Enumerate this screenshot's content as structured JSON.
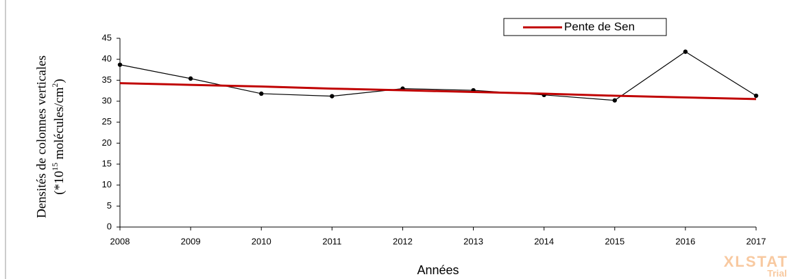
{
  "chart_data": {
    "type": "line",
    "x_label": "Années",
    "y_label_line1": "Densités de colonnes verticales",
    "y_label_line2_parts": [
      "(*10",
      "15",
      " molécules/cm",
      "2",
      ")"
    ],
    "categories": [
      "2008",
      "2009",
      "2010",
      "2011",
      "2012",
      "2013",
      "2014",
      "2015",
      "2016",
      "2017"
    ],
    "series": [
      {
        "color": "#000000",
        "values": [
          38.7,
          35.4,
          31.8,
          31.2,
          33.0,
          32.6,
          31.5,
          30.2,
          41.8,
          31.3
        ],
        "markers": true
      },
      {
        "name": "Pente de Sen",
        "color": "#c00000",
        "values": [
          34.3,
          33.9,
          33.5,
          33.0,
          32.6,
          32.2,
          31.8,
          31.3,
          30.9,
          30.5
        ],
        "markers": false
      }
    ],
    "ylim": [
      0,
      45
    ],
    "yticks": [
      0,
      5,
      10,
      15,
      20,
      25,
      30,
      35,
      40,
      45
    ],
    "legend": "top-right",
    "watermark": [
      "XLSTAT",
      "Trial"
    ]
  }
}
